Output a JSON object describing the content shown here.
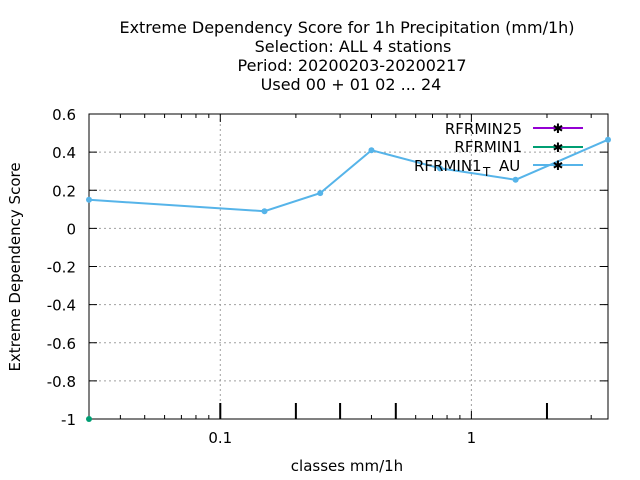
{
  "chart_data": {
    "type": "line",
    "title_lines": [
      "Extreme Dependency Score  for 1h Precipitation (mm/1h)",
      "Selection: ALL      4 stations",
      "Period: 20200203-20200217",
      "Used  00 + 01 02 ... 24"
    ],
    "xlabel": "classes mm/1h",
    "ylabel": "Extreme Dependency Score",
    "x_scale": "log",
    "xlim": [
      0.03,
      3.5
    ],
    "ylim": [
      -1,
      0.6
    ],
    "x_ticks": [
      0.1,
      1
    ],
    "x_tick_labels": [
      "0.1",
      "1"
    ],
    "y_ticks": [
      -1,
      -0.8,
      -0.6,
      -0.4,
      -0.2,
      0,
      0.2,
      0.4,
      0.6
    ],
    "y_tick_labels": [
      "-1",
      "-0.8",
      "-0.6",
      "-0.4",
      "-0.2",
      "0",
      "0.2",
      "0.4",
      "0.6"
    ],
    "grid": true,
    "legend_position": "top-right",
    "series": [
      {
        "name": "RFRMIN25",
        "color": "#9400d3",
        "x": [],
        "y": []
      },
      {
        "name": "RFRMIN1",
        "color": "#009e73",
        "x": [
          0.03
        ],
        "y": [
          -1
        ]
      },
      {
        "name": "RFRMIN1_T_AU",
        "color": "#56b4e9",
        "x": [
          0.03,
          0.15,
          0.25,
          0.4,
          0.75,
          1.5,
          3.5
        ],
        "y": [
          0.15,
          0.09,
          0.185,
          0.41,
          0.315,
          0.255,
          0.465
        ]
      }
    ],
    "legend_labels": [
      "RFRMIN25",
      "RFRMIN1",
      "RFRMIN1",
      "T",
      "AU"
    ],
    "bottom_marker_x": [
      0.1,
      0.2,
      0.3,
      0.5,
      2.0
    ]
  }
}
